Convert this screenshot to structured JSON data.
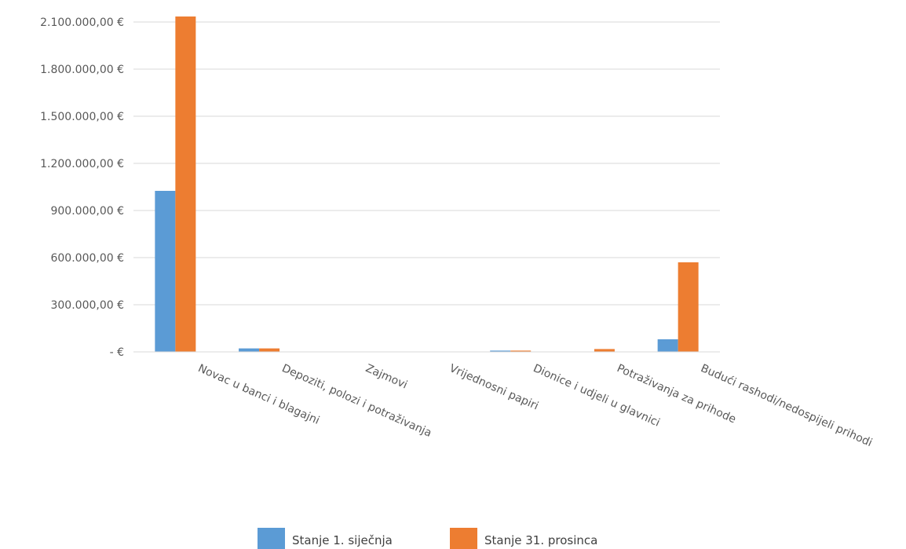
{
  "chart_data": {
    "type": "bar",
    "title": "",
    "xlabel": "",
    "ylabel": "",
    "categories": [
      "Novac u banci i blagajni",
      "Depoziti, polozi i potraživanja",
      "Zajmovi",
      "Vrijednosni papiri",
      "Dionice i udjeli u glavnici",
      "Potraživanja za prihode",
      "Budući rashodi/nedospijeli prihodi"
    ],
    "series": [
      {
        "name": "Stanje 1. siječnja",
        "color": "#5b9bd5",
        "values": [
          1025000,
          22000,
          0,
          0,
          8000,
          0,
          80000
        ]
      },
      {
        "name": "Stanje 31. prosinca",
        "color": "#ed7d31",
        "values": [
          2135000,
          22000,
          0,
          0,
          8000,
          18000,
          570000
        ]
      }
    ],
    "ylim": [
      0,
      2100000
    ],
    "yticks": [
      0,
      300000,
      600000,
      900000,
      1200000,
      1500000,
      1800000,
      2100000
    ],
    "ytick_labels": [
      "-  €",
      "300.000,00 €",
      "600.000,00 €",
      "900.000,00 €",
      "1.200.000,00 €",
      "1.500.000,00 €",
      "1.800.000,00 €",
      "2.100.000,00 €"
    ],
    "grid": true,
    "legend_position": "bottom"
  }
}
